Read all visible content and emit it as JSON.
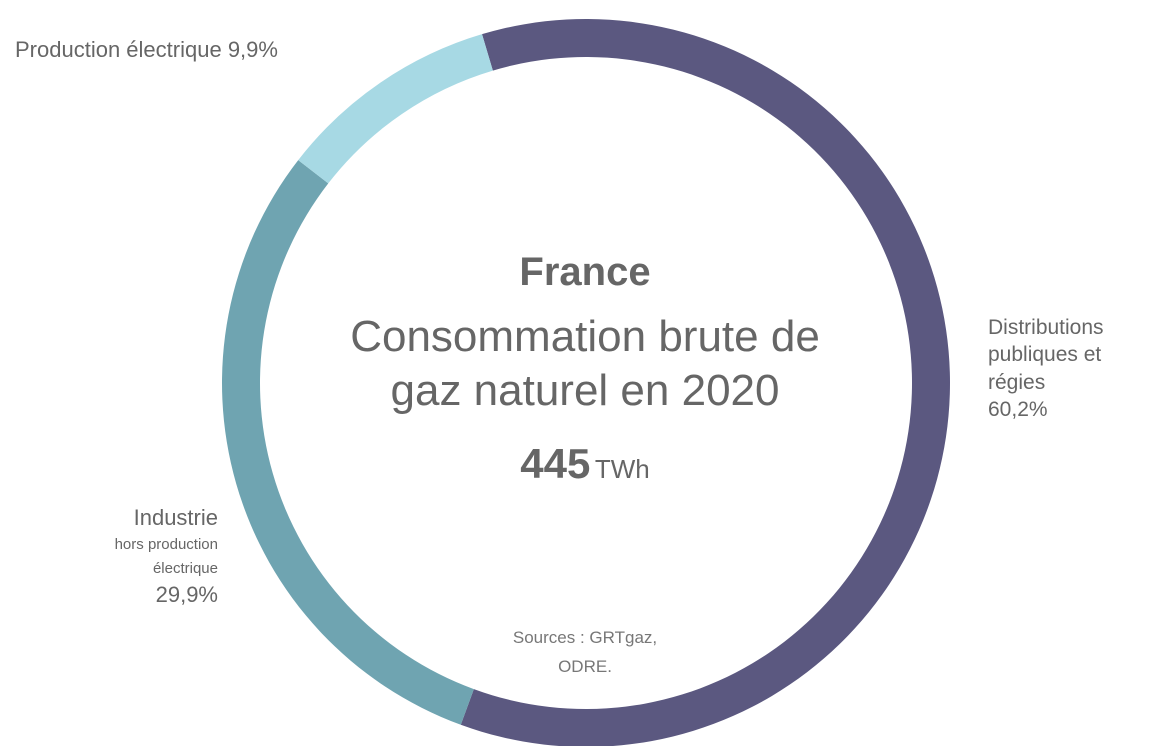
{
  "chart_data": {
    "type": "donut",
    "title": "France",
    "subtitle": "Consommation brute de gaz naturel en 2020",
    "total": 445,
    "total_unit": "TWh",
    "source": "Sources : GRTgaz, ODRE.",
    "categories": [
      "Distributions publiques et régies",
      "Industrie",
      "Production électrique"
    ],
    "category_notes": [
      null,
      "hors production électrique",
      null
    ],
    "values": [
      60.2,
      29.9,
      9.9
    ],
    "value_labels": [
      "60,2%",
      "29,9%",
      "9,9%"
    ],
    "colors": [
      "#5b5880",
      "#6fa4b1",
      "#a7d9e4"
    ]
  }
}
